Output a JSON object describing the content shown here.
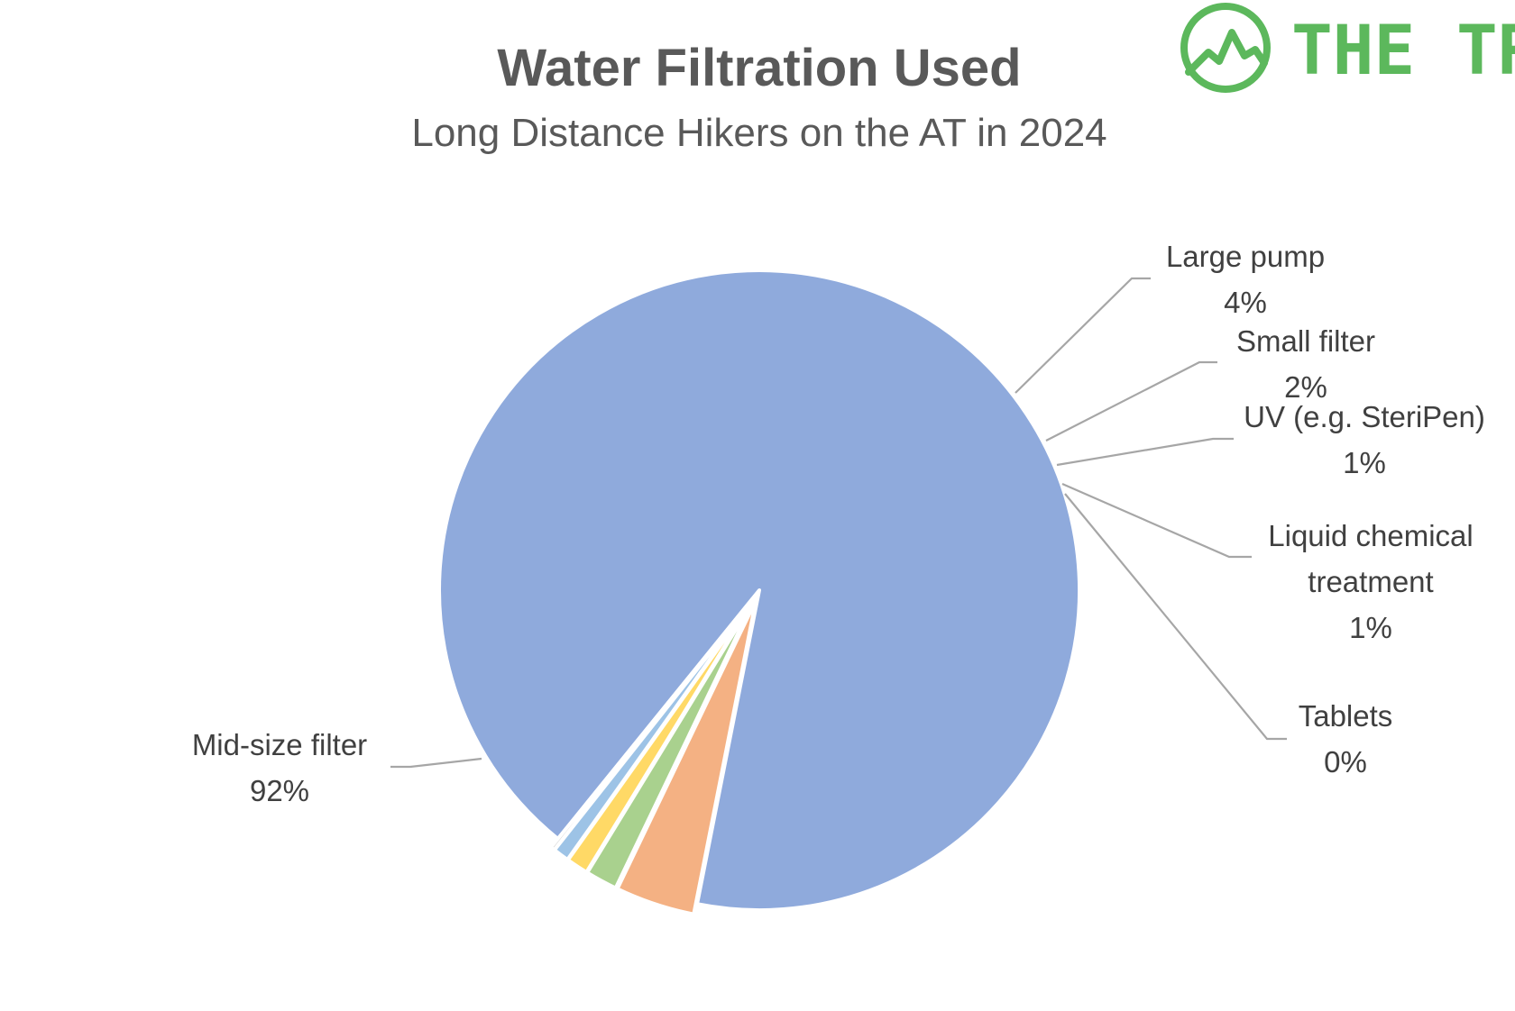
{
  "chart_data": {
    "type": "pie",
    "title": "Water Filtration Used",
    "subtitle": "Long Distance Hikers on the AT in 2024",
    "slices": [
      {
        "label": "Mid-size filter",
        "label_lines": [
          "Mid-size filter"
        ],
        "value_label": "92%",
        "value": 92.0,
        "color": "#8faadc"
      },
      {
        "label": "Large pump",
        "label_lines": [
          "Large pump"
        ],
        "value_label": "4%",
        "value": 4.0,
        "color": "#f4b183"
      },
      {
        "label": "Small filter",
        "label_lines": [
          "Small filter"
        ],
        "value_label": "2%",
        "value": 1.6,
        "color": "#a9d18e"
      },
      {
        "label": "UV (e.g. SteriPen)",
        "label_lines": [
          "UV (e.g. SteriPen)"
        ],
        "value_label": "1%",
        "value": 1.1,
        "color": "#ffd966"
      },
      {
        "label": "Liquid chemical treatment",
        "label_lines": [
          "Liquid chemical",
          "treatment"
        ],
        "value_label": "1%",
        "value": 0.8,
        "color": "#9dc3e6"
      },
      {
        "label": "Tablets",
        "label_lines": [
          "Tablets"
        ],
        "value_label": "0%",
        "value": 0.2,
        "color": "#c9c9c9"
      }
    ],
    "slice_border_color": "#ffffff"
  },
  "brand": {
    "name": "THE TREK",
    "color": "#5cb85c",
    "icon": "mountain-logo-icon"
  }
}
